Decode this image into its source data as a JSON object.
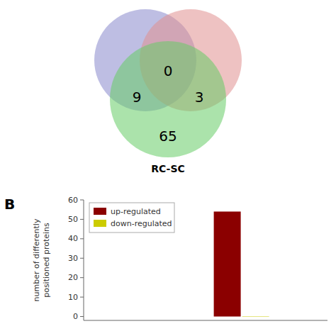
{
  "chart_data": [
    {
      "type": "venn",
      "series": [
        {
          "color": "#8888cc"
        },
        {
          "color": "#e09090"
        },
        {
          "name": "RC-SC",
          "color": "#66cc66"
        }
      ],
      "values": [
        0,
        9,
        3,
        65
      ],
      "data_labels": true
    },
    {
      "type": "bar",
      "title": "B",
      "y_label": "number of differently\npositioned proteins",
      "categories": [
        null
      ],
      "series": [
        {
          "name": "up-regulated",
          "color": "#8b0000",
          "values": [
            54
          ]
        },
        {
          "name": "down-regulated",
          "color": "#cccc00",
          "values": [
            0
          ]
        }
      ],
      "ylim": [
        -2,
        60
      ],
      "yticks": [
        0,
        10,
        20,
        30,
        40,
        50,
        60
      ],
      "legend": "upper left",
      "tick_labels": "y"
    }
  ]
}
